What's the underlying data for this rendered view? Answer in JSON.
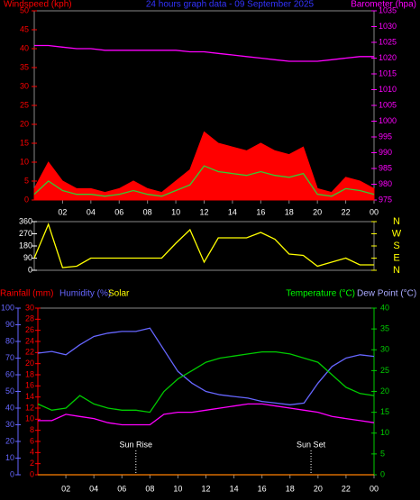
{
  "chart_data": [
    {
      "type": "line",
      "title": "24 hours graph data - 09 September 2025",
      "labels": [
        {
          "text": "Windspeed (kph)",
          "color": "#ff0000"
        },
        {
          "text": "Barometer (hpa)",
          "color": "#ff00ff"
        }
      ],
      "x": [
        0,
        1,
        2,
        3,
        4,
        5,
        6,
        7,
        8,
        9,
        10,
        11,
        12,
        13,
        14,
        15,
        16,
        17,
        18,
        19,
        20,
        21,
        22,
        23,
        24
      ],
      "xlim": [
        0,
        24
      ],
      "xticks": [
        {
          "value": 2,
          "label": "02"
        },
        {
          "value": 4,
          "label": "04"
        },
        {
          "value": 6,
          "label": "06"
        },
        {
          "value": 8,
          "label": "08"
        },
        10,
        12,
        14,
        16,
        18,
        20,
        22,
        {
          "value": 24,
          "label": "00"
        }
      ],
      "ylim": [
        0,
        50
      ],
      "yticks": [
        0,
        5,
        10,
        15,
        20,
        25,
        30,
        35,
        40,
        45,
        50
      ],
      "y2lim": [
        975,
        1035
      ],
      "y2ticks": [
        975,
        980,
        985,
        990,
        995,
        1000,
        1005,
        1010,
        1015,
        1020,
        1025,
        1030,
        1035
      ],
      "series": [
        {
          "color": "#ff0000",
          "kind": "area",
          "values": [
            3,
            10,
            5,
            3,
            3,
            2,
            3,
            5,
            3,
            2,
            5,
            8,
            18,
            15,
            14,
            13,
            15,
            13,
            12,
            14,
            3,
            2,
            6,
            5,
            3
          ]
        },
        {
          "color": "#33cc33",
          "kind": "line",
          "values": [
            1.5,
            5,
            2.5,
            1.5,
            1.5,
            1,
            1.5,
            2.5,
            1.5,
            1,
            2.5,
            4,
            9,
            7.5,
            7,
            6.5,
            7.5,
            6.5,
            6,
            7,
            1.5,
            1,
            3,
            2.5,
            1.5
          ]
        },
        {
          "color": "#ff00ff",
          "kind": "line",
          "axis": "y2",
          "values": [
            1024,
            1024,
            1023.5,
            1023,
            1023,
            1022.5,
            1022.5,
            1022.5,
            1022.5,
            1022.5,
            1022.5,
            1022,
            1022,
            1021.5,
            1021,
            1020.5,
            1020,
            1019.5,
            1019,
            1019,
            1019,
            1019.5,
            1020,
            1020.5,
            1020.5
          ]
        }
      ]
    },
    {
      "type": "line",
      "x": [
        0,
        1,
        2,
        3,
        4,
        5,
        6,
        7,
        8,
        9,
        10,
        11,
        12,
        13,
        14,
        15,
        16,
        17,
        18,
        19,
        20,
        21,
        22,
        23,
        24
      ],
      "xlim": [
        0,
        24
      ],
      "ylim": [
        0,
        360
      ],
      "yticks": [
        0,
        90,
        180,
        270,
        360
      ],
      "y2lim": [
        0,
        360
      ],
      "y2ticks": [
        {
          "value": 0,
          "label": "N"
        },
        {
          "value": 90,
          "label": "E"
        },
        {
          "value": 180,
          "label": "S"
        },
        {
          "value": 270,
          "label": "W"
        },
        {
          "value": 360,
          "label": "N"
        }
      ],
      "series": [
        {
          "color": "#ffff00",
          "kind": "line",
          "values": [
            90,
            340,
            20,
            30,
            90,
            90,
            90,
            90,
            90,
            90,
            200,
            300,
            60,
            240,
            240,
            240,
            280,
            230,
            120,
            110,
            30,
            60,
            90,
            40,
            40
          ]
        }
      ]
    },
    {
      "type": "line",
      "labels": [
        {
          "text": "Rainfall (mm)",
          "color": "#ff0000"
        },
        {
          "text": "Humidity (%)",
          "color": "#6666ff"
        },
        {
          "text": "Solar",
          "color": "#ffff00"
        },
        {
          "text": "Temperature (°C)",
          "color": "#00ff00"
        },
        {
          "text": "Dew Point (°C)",
          "color": "#aaaaff"
        }
      ],
      "x": [
        0,
        1,
        2,
        3,
        4,
        5,
        6,
        7,
        8,
        9,
        10,
        11,
        12,
        13,
        14,
        15,
        16,
        17,
        18,
        19,
        20,
        21,
        22,
        23,
        24
      ],
      "xlim": [
        0,
        24
      ],
      "xticks": [
        {
          "value": 2,
          "label": "02"
        },
        {
          "value": 4,
          "label": "04"
        },
        {
          "value": 6,
          "label": "06"
        },
        {
          "value": 8,
          "label": "08"
        },
        10,
        12,
        14,
        16,
        18,
        20,
        22,
        {
          "value": 24,
          "label": "00"
        }
      ],
      "ylim": [
        0,
        100
      ],
      "yticks": [
        0,
        10,
        20,
        30,
        40,
        50,
        60,
        70,
        80,
        90,
        100
      ],
      "y3lim": [
        0,
        30
      ],
      "y3ticks": [
        0,
        2,
        4,
        6,
        8,
        10,
        12,
        14,
        16,
        18,
        20,
        22,
        24,
        26,
        28,
        30
      ],
      "y2lim": [
        0,
        40
      ],
      "y2ticks": [
        0,
        5,
        10,
        15,
        20,
        25,
        30,
        35,
        40
      ],
      "annotations": [
        {
          "text": "Sun Rise",
          "x": 7
        },
        {
          "text": "Sun Set",
          "x": 19.5
        }
      ],
      "series": [
        {
          "color": "#6666ff",
          "kind": "line",
          "values": [
            73,
            74,
            72,
            78,
            83,
            85,
            86,
            86,
            88,
            75,
            62,
            55,
            50,
            48,
            47,
            46,
            44,
            43,
            42,
            43,
            55,
            65,
            70,
            72,
            71
          ]
        },
        {
          "color": "#00cc00",
          "kind": "line",
          "axis": "y2",
          "values": [
            17,
            15.5,
            16,
            19,
            17,
            16,
            15.5,
            15.5,
            15,
            20,
            23,
            25,
            27,
            28,
            28.5,
            29,
            29.5,
            29.5,
            29,
            28,
            27,
            24,
            21,
            19.5,
            19
          ]
        },
        {
          "color": "#ff00ff",
          "kind": "line",
          "axis": "y2",
          "values": [
            13,
            13,
            14.5,
            14,
            13.5,
            12.5,
            12,
            12,
            12,
            14.5,
            15,
            15,
            15.5,
            16,
            16.5,
            17,
            17,
            16.5,
            16,
            15.5,
            15,
            14,
            13.5,
            13,
            12.5
          ]
        },
        {
          "color": "#ff8000",
          "kind": "line",
          "axis": "y3",
          "values": [
            0,
            0,
            0,
            0,
            0,
            0,
            0,
            0,
            0,
            0,
            0,
            0,
            0,
            0,
            0,
            0,
            0,
            0,
            0,
            0,
            0,
            0,
            0,
            0,
            0
          ]
        }
      ]
    }
  ]
}
